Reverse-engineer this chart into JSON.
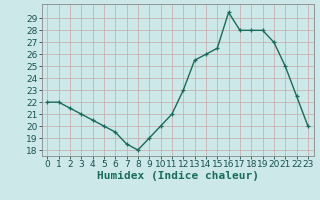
{
  "x": [
    0,
    1,
    2,
    3,
    4,
    5,
    6,
    7,
    8,
    9,
    10,
    11,
    12,
    13,
    14,
    15,
    16,
    17,
    18,
    19,
    20,
    21,
    22,
    23
  ],
  "y": [
    22,
    22,
    21.5,
    21,
    20.5,
    20,
    19.5,
    18.5,
    18,
    19,
    20,
    21,
    23,
    25.5,
    26,
    26.5,
    29.5,
    28,
    28,
    28,
    27,
    25,
    22.5,
    20
  ],
  "line_color": "#1a6b5a",
  "marker": "+",
  "bg_color": "#cce8e8",
  "grid_major_color": "#ffffff",
  "grid_minor_color": "#ddeaea",
  "xlabel": "Humidex (Indice chaleur)",
  "xlim": [
    -0.5,
    23.5
  ],
  "ylim": [
    17.5,
    30.2
  ],
  "yticks": [
    18,
    19,
    20,
    21,
    22,
    23,
    24,
    25,
    26,
    27,
    28,
    29
  ],
  "xticks": [
    0,
    1,
    2,
    3,
    4,
    5,
    6,
    7,
    8,
    9,
    10,
    11,
    12,
    13,
    14,
    15,
    16,
    17,
    18,
    19,
    20,
    21,
    22,
    23
  ],
  "xlabel_fontsize": 8,
  "tick_fontsize": 6.5,
  "line_width": 1.0,
  "marker_size": 3.5
}
